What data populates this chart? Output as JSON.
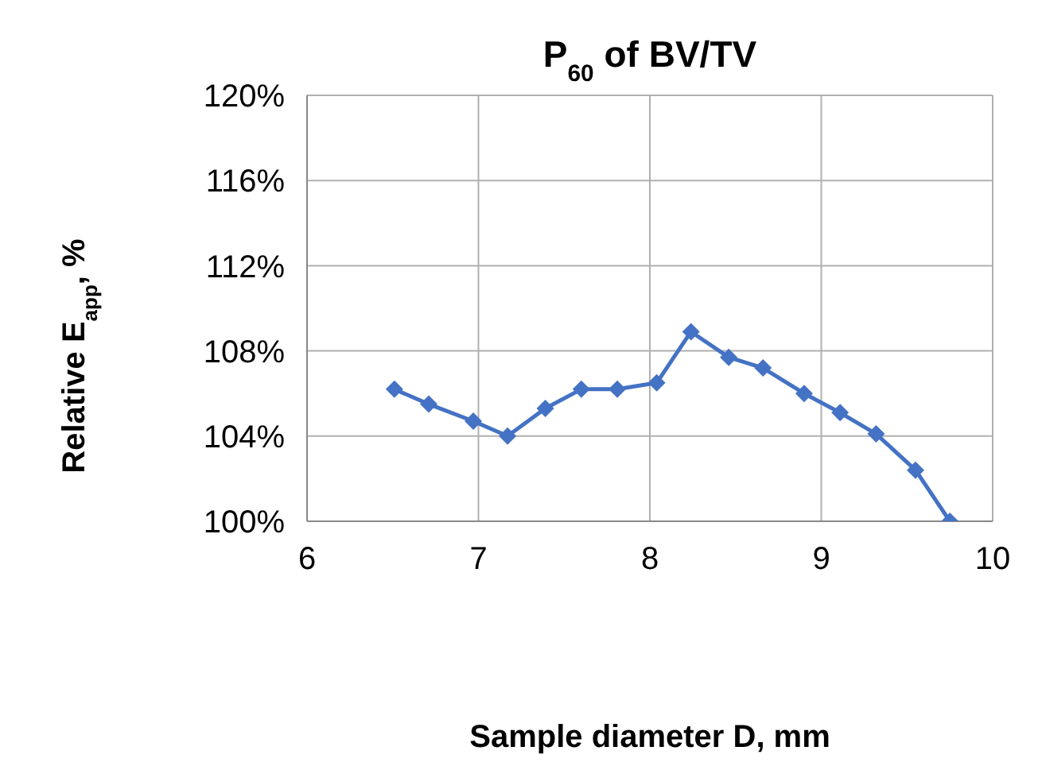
{
  "chart_data": {
    "type": "line",
    "title": "P$_{60}$ of BV/TV",
    "xlabel": "Sample diameter D, mm",
    "ylabel": "Relative E$_{app}$, %",
    "x": [
      6.51,
      6.71,
      6.97,
      7.17,
      7.39,
      7.6,
      7.81,
      8.04,
      8.24,
      8.46,
      8.66,
      8.9,
      9.11,
      9.32,
      9.55,
      9.75
    ],
    "series": [
      {
        "color": "#4472c4",
        "values": [
          106.2,
          105.5,
          104.7,
          104.0,
          105.3,
          106.2,
          106.2,
          106.5,
          108.9,
          107.7,
          107.2,
          106.0,
          105.1,
          104.1,
          102.4,
          100.0
        ]
      }
    ],
    "xlim": [
      6,
      10
    ],
    "xticks": [
      6,
      7,
      8,
      9,
      10
    ],
    "ylim": [
      100,
      120
    ],
    "yticks": [
      {
        "value": 100,
        "label": "100%"
      },
      {
        "value": 104,
        "label": "104%"
      },
      {
        "value": 108,
        "label": "108%"
      },
      {
        "value": 112,
        "label": "112%"
      },
      {
        "value": 116,
        "label": "116%"
      },
      {
        "value": 120,
        "label": "120%"
      }
    ],
    "grid": true,
    "marker": "diamond",
    "line_style": "solid"
  }
}
